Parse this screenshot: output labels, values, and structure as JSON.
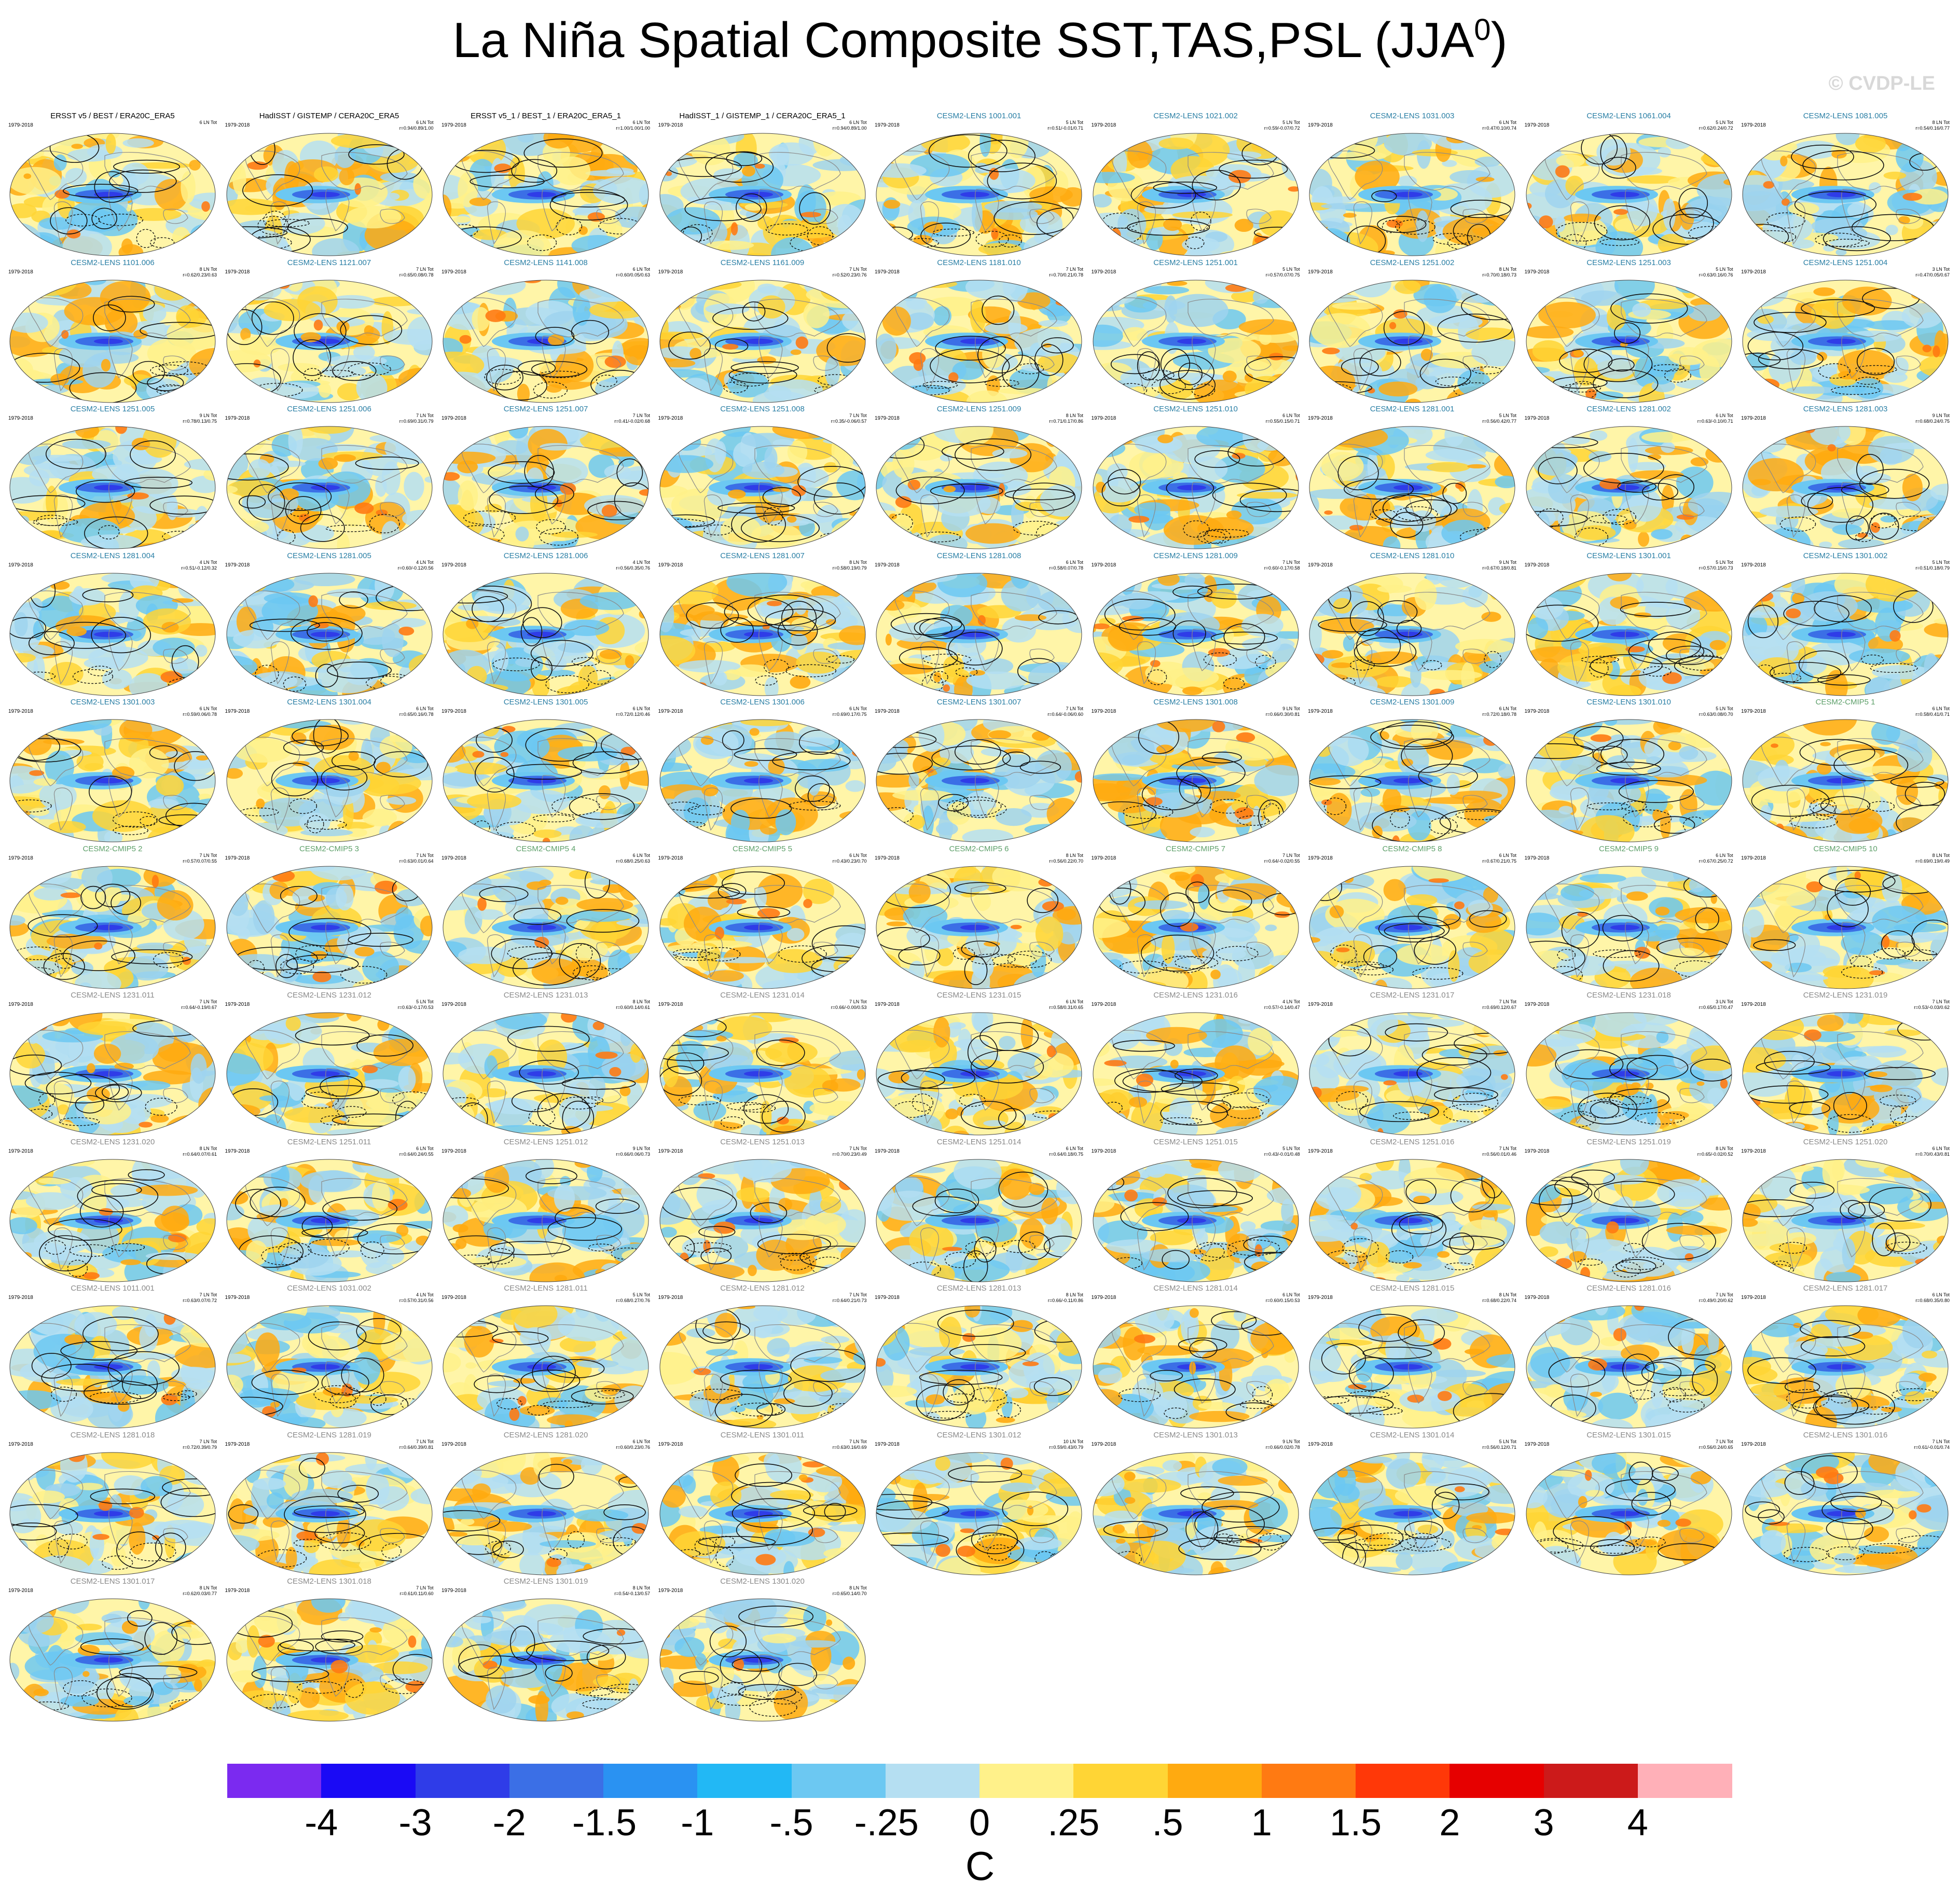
{
  "title": {
    "main": "La Niña Spatial Composite SST,TAS,PSL (JJA",
    "superscript": "0",
    "close": ")"
  },
  "watermark": "© CVDP-LE",
  "colors": {
    "obs_title": "#000000",
    "lens_title": "#2a7fa5",
    "cmip_title": "#5ea06a",
    "lens_gray_title": "#8a8a8a"
  },
  "panels": [
    {
      "title": "ERSST v5 / BEST / ERA20C_ERA5",
      "kind": "obs",
      "years": "1979-2018",
      "stat1": "6 LN Tot",
      "stat2": ""
    },
    {
      "title": "HadISST / GISTEMP / CERA20C_ERA5",
      "kind": "obs",
      "years": "1979-2018",
      "stat1": "6 LN Tot",
      "stat2": "r=0.94/0.89/1.00"
    },
    {
      "title": "ERSST v5_1 / BEST_1 / ERA20C_ERA5_1",
      "kind": "obs",
      "years": "1979-2018",
      "stat1": "6 LN Tot",
      "stat2": "r=1.00/1.00/1.00"
    },
    {
      "title": "HadISST_1 / GISTEMP_1 / CERA20C_ERA5_1",
      "kind": "obs",
      "years": "1979-2018",
      "stat1": "6 LN Tot",
      "stat2": "r=0.94/0.89/1.00"
    },
    {
      "title": "CESM2-LENS 1001.001",
      "kind": "lens",
      "years": "1979-2018",
      "stat1": "5 LN Tot",
      "stat2": "r=0.51/-0.01/0.71"
    },
    {
      "title": "CESM2-LENS 1021.002",
      "kind": "lens",
      "years": "1979-2018",
      "stat1": "5 LN Tot",
      "stat2": "r=0.59/-0.07/0.72"
    },
    {
      "title": "CESM2-LENS 1031.003",
      "kind": "lens",
      "years": "1979-2018",
      "stat1": "6 LN Tot",
      "stat2": "r=0.47/0.10/0.74"
    },
    {
      "title": "CESM2-LENS 1061.004",
      "kind": "lens",
      "years": "1979-2018",
      "stat1": "5 LN Tot",
      "stat2": "r=0.62/0.24/0.72"
    },
    {
      "title": "CESM2-LENS 1081.005",
      "kind": "lens",
      "years": "1979-2018",
      "stat1": "8 LN Tot",
      "stat2": "r=0.54/0.16/0.77"
    },
    {
      "title": "CESM2-LENS 1101.006",
      "kind": "lens",
      "years": "1979-2018",
      "stat1": "8 LN Tot",
      "stat2": "r=0.62/0.23/0.63"
    },
    {
      "title": "CESM2-LENS 1121.007",
      "kind": "lens",
      "years": "1979-2018",
      "stat1": "7 LN Tot",
      "stat2": "r=0.65/0.08/0.78"
    },
    {
      "title": "CESM2-LENS 1141.008",
      "kind": "lens",
      "years": "1979-2018",
      "stat1": "6 LN Tot",
      "stat2": "r=0.60/0.05/0.63"
    },
    {
      "title": "CESM2-LENS 1161.009",
      "kind": "lens",
      "years": "1979-2018",
      "stat1": "7 LN Tot",
      "stat2": "r=0.52/0.23/0.76"
    },
    {
      "title": "CESM2-LENS 1181.010",
      "kind": "lens",
      "years": "1979-2018",
      "stat1": "7 LN Tot",
      "stat2": "r=0.70/0.21/0.78"
    },
    {
      "title": "CESM2-LENS 1251.001",
      "kind": "lens",
      "years": "1979-2018",
      "stat1": "5 LN Tot",
      "stat2": "r=0.57/0.07/0.75"
    },
    {
      "title": "CESM2-LENS 1251.002",
      "kind": "lens",
      "years": "1979-2018",
      "stat1": "8 LN Tot",
      "stat2": "r=0.70/0.18/0.73"
    },
    {
      "title": "CESM2-LENS 1251.003",
      "kind": "lens",
      "years": "1979-2018",
      "stat1": "5 LN Tot",
      "stat2": "r=0.63/0.16/0.76"
    },
    {
      "title": "CESM2-LENS 1251.004",
      "kind": "lens",
      "years": "1979-2018",
      "stat1": "3 LN Tot",
      "stat2": "r=0.47/0.05/0.67"
    },
    {
      "title": "CESM2-LENS 1251.005",
      "kind": "lens",
      "years": "1979-2018",
      "stat1": "9 LN Tot",
      "stat2": "r=0.78/0.13/0.75"
    },
    {
      "title": "CESM2-LENS 1251.006",
      "kind": "lens",
      "years": "1979-2018",
      "stat1": "7 LN Tot",
      "stat2": "r=0.69/0.31/0.79"
    },
    {
      "title": "CESM2-LENS 1251.007",
      "kind": "lens",
      "years": "1979-2018",
      "stat1": "7 LN Tot",
      "stat2": "r=0.41/-0.02/0.68"
    },
    {
      "title": "CESM2-LENS 1251.008",
      "kind": "lens",
      "years": "1979-2018",
      "stat1": "7 LN Tot",
      "stat2": "r=0.35/-0.06/0.57"
    },
    {
      "title": "CESM2-LENS 1251.009",
      "kind": "lens",
      "years": "1979-2018",
      "stat1": "8 LN Tot",
      "stat2": "r=0.71/0.17/0.86"
    },
    {
      "title": "CESM2-LENS 1251.010",
      "kind": "lens",
      "years": "1979-2018",
      "stat1": "6 LN Tot",
      "stat2": "r=0.55/0.15/0.71"
    },
    {
      "title": "CESM2-LENS 1281.001",
      "kind": "lens",
      "years": "1979-2018",
      "stat1": "5 LN Tot",
      "stat2": "r=0.56/0.42/0.77"
    },
    {
      "title": "CESM2-LENS 1281.002",
      "kind": "lens",
      "years": "1979-2018",
      "stat1": "6 LN Tot",
      "stat2": "r=0.63/-0.10/0.71"
    },
    {
      "title": "CESM2-LENS 1281.003",
      "kind": "lens",
      "years": "1979-2018",
      "stat1": "9 LN Tot",
      "stat2": "r=0.68/0.24/0.75"
    },
    {
      "title": "CESM2-LENS 1281.004",
      "kind": "lens",
      "years": "1979-2018",
      "stat1": "4 LN Tot",
      "stat2": "r=0.51/-0.12/0.32"
    },
    {
      "title": "CESM2-LENS 1281.005",
      "kind": "lens",
      "years": "1979-2018",
      "stat1": "4 LN Tot",
      "stat2": "r=0.60/-0.12/0.56"
    },
    {
      "title": "CESM2-LENS 1281.006",
      "kind": "lens",
      "years": "1979-2018",
      "stat1": "4 LN Tot",
      "stat2": "r=0.56/0.35/0.76"
    },
    {
      "title": "CESM2-LENS 1281.007",
      "kind": "lens",
      "years": "1979-2018",
      "stat1": "8 LN Tot",
      "stat2": "r=0.58/0.19/0.79"
    },
    {
      "title": "CESM2-LENS 1281.008",
      "kind": "lens",
      "years": "1979-2018",
      "stat1": "6 LN Tot",
      "stat2": "r=0.58/0.07/0.78"
    },
    {
      "title": "CESM2-LENS 1281.009",
      "kind": "lens",
      "years": "1979-2018",
      "stat1": "7 LN Tot",
      "stat2": "r=0.60/-0.17/0.58"
    },
    {
      "title": "CESM2-LENS 1281.010",
      "kind": "lens",
      "years": "1979-2018",
      "stat1": "9 LN Tot",
      "stat2": "r=0.67/0.18/0.81"
    },
    {
      "title": "CESM2-LENS 1301.001",
      "kind": "lens",
      "years": "1979-2018",
      "stat1": "5 LN Tot",
      "stat2": "r=0.57/0.15/0.73"
    },
    {
      "title": "CESM2-LENS 1301.002",
      "kind": "lens",
      "years": "1979-2018",
      "stat1": "5 LN Tot",
      "stat2": "r=0.51/0.18/0.79"
    },
    {
      "title": "CESM2-LENS 1301.003",
      "kind": "lens",
      "years": "1979-2018",
      "stat1": "6 LN Tot",
      "stat2": "r=0.59/0.06/0.78"
    },
    {
      "title": "CESM2-LENS 1301.004",
      "kind": "lens",
      "years": "1979-2018",
      "stat1": "6 LN Tot",
      "stat2": "r=0.65/0.16/0.78"
    },
    {
      "title": "CESM2-LENS 1301.005",
      "kind": "lens",
      "years": "1979-2018",
      "stat1": "6 LN Tot",
      "stat2": "r=0.72/0.12/0.46"
    },
    {
      "title": "CESM2-LENS 1301.006",
      "kind": "lens",
      "years": "1979-2018",
      "stat1": "6 LN Tot",
      "stat2": "r=0.69/0.17/0.75"
    },
    {
      "title": "CESM2-LENS 1301.007",
      "kind": "lens",
      "years": "1979-2018",
      "stat1": "7 LN Tot",
      "stat2": "r=0.64/-0.06/0.60"
    },
    {
      "title": "CESM2-LENS 1301.008",
      "kind": "lens",
      "years": "1979-2018",
      "stat1": "9 LN Tot",
      "stat2": "r=0.66/0.30/0.81"
    },
    {
      "title": "CESM2-LENS 1301.009",
      "kind": "lens",
      "years": "1979-2018",
      "stat1": "6 LN Tot",
      "stat2": "r=0.72/0.18/0.78"
    },
    {
      "title": "CESM2-LENS 1301.010",
      "kind": "lens",
      "years": "1979-2018",
      "stat1": "5 LN Tot",
      "stat2": "r=0.63/0.08/0.70"
    },
    {
      "title": "CESM2-CMIP5 1",
      "kind": "cmip",
      "years": "1979-2018",
      "stat1": "6 LN Tot",
      "stat2": "r=0.58/0.41/0.71"
    },
    {
      "title": "CESM2-CMIP5 2",
      "kind": "cmip",
      "years": "1979-2018",
      "stat1": "7 LN Tot",
      "stat2": "r=0.57/0.07/0.55"
    },
    {
      "title": "CESM2-CMIP5 3",
      "kind": "cmip",
      "years": "1979-2018",
      "stat1": "7 LN Tot",
      "stat2": "r=0.63/0.01/0.64"
    },
    {
      "title": "CESM2-CMIP5 4",
      "kind": "cmip",
      "years": "1979-2018",
      "stat1": "6 LN Tot",
      "stat2": "r=0.68/0.25/0.63"
    },
    {
      "title": "CESM2-CMIP5 5",
      "kind": "cmip",
      "years": "1979-2018",
      "stat1": "6 LN Tot",
      "stat2": "r=0.43/0.23/0.70"
    },
    {
      "title": "CESM2-CMIP5 6",
      "kind": "cmip",
      "years": "1979-2018",
      "stat1": "8 LN Tot",
      "stat2": "r=0.56/0.22/0.70"
    },
    {
      "title": "CESM2-CMIP5 7",
      "kind": "cmip",
      "years": "1979-2018",
      "stat1": "7 LN Tot",
      "stat2": "r=0.64/-0.02/0.55"
    },
    {
      "title": "CESM2-CMIP5 8",
      "kind": "cmip",
      "years": "1979-2018",
      "stat1": "6 LN Tot",
      "stat2": "r=0.67/0.21/0.75"
    },
    {
      "title": "CESM2-CMIP5 9",
      "kind": "cmip",
      "years": "1979-2018",
      "stat1": "6 LN Tot",
      "stat2": "r=0.67/0.25/0.72"
    },
    {
      "title": "CESM2-CMIP5 10",
      "kind": "cmip",
      "years": "1979-2018",
      "stat1": "8 LN Tot",
      "stat2": "r=0.69/0.19/0.49"
    },
    {
      "title": "CESM2-LENS 1231.011",
      "kind": "gray",
      "years": "1979-2018",
      "stat1": "7 LN Tot",
      "stat2": "r=0.64/-0.19/0.67"
    },
    {
      "title": "CESM2-LENS 1231.012",
      "kind": "gray",
      "years": "1979-2018",
      "stat1": "5 LN Tot",
      "stat2": "r=0.63/-0.17/0.53"
    },
    {
      "title": "CESM2-LENS 1231.013",
      "kind": "gray",
      "years": "1979-2018",
      "stat1": "8 LN Tot",
      "stat2": "r=0.60/0.14/0.61"
    },
    {
      "title": "CESM2-LENS 1231.014",
      "kind": "gray",
      "years": "1979-2018",
      "stat1": "7 LN Tot",
      "stat2": "r=0.66/-0.00/0.53"
    },
    {
      "title": "CESM2-LENS 1231.015",
      "kind": "gray",
      "years": "1979-2018",
      "stat1": "6 LN Tot",
      "stat2": "r=0.58/0.31/0.65"
    },
    {
      "title": "CESM2-LENS 1231.016",
      "kind": "gray",
      "years": "1979-2018",
      "stat1": "4 LN Tot",
      "stat2": "r=0.57/-0.14/0.47"
    },
    {
      "title": "CESM2-LENS 1231.017",
      "kind": "gray",
      "years": "1979-2018",
      "stat1": "7 LN Tot",
      "stat2": "r=0.69/0.12/0.67"
    },
    {
      "title": "CESM2-LENS 1231.018",
      "kind": "gray",
      "years": "1979-2018",
      "stat1": "3 LN Tot",
      "stat2": "r=0.65/0.17/0.47"
    },
    {
      "title": "CESM2-LENS 1231.019",
      "kind": "gray",
      "years": "1979-2018",
      "stat1": "7 LN Tot",
      "stat2": "r=0.53/-0.03/0.62"
    },
    {
      "title": "CESM2-LENS 1231.020",
      "kind": "gray",
      "years": "1979-2018",
      "stat1": "8 LN Tot",
      "stat2": "r=0.64/0.07/0.61"
    },
    {
      "title": "CESM2-LENS 1251.011",
      "kind": "gray",
      "years": "1979-2018",
      "stat1": "6 LN Tot",
      "stat2": "r=0.64/0.24/0.55"
    },
    {
      "title": "CESM2-LENS 1251.012",
      "kind": "gray",
      "years": "1979-2018",
      "stat1": "9 LN Tot",
      "stat2": "r=0.66/0.06/0.73"
    },
    {
      "title": "CESM2-LENS 1251.013",
      "kind": "gray",
      "years": "1979-2018",
      "stat1": "7 LN Tot",
      "stat2": "r=0.70/0.23/0.49"
    },
    {
      "title": "CESM2-LENS 1251.014",
      "kind": "gray",
      "years": "1979-2018",
      "stat1": "6 LN Tot",
      "stat2": "r=0.64/0.18/0.75"
    },
    {
      "title": "CESM2-LENS 1251.015",
      "kind": "gray",
      "years": "1979-2018",
      "stat1": "5 LN Tot",
      "stat2": "r=0.43/-0.01/0.48"
    },
    {
      "title": "CESM2-LENS 1251.016",
      "kind": "gray",
      "years": "1979-2018",
      "stat1": "7 LN Tot",
      "stat2": "r=0.56/0.01/0.46"
    },
    {
      "title": "CESM2-LENS 1251.019",
      "kind": "gray",
      "years": "1979-2018",
      "stat1": "8 LN Tot",
      "stat2": "r=0.65/-0.02/0.52"
    },
    {
      "title": "CESM2-LENS 1251.020",
      "kind": "gray",
      "years": "1979-2018",
      "stat1": "6 LN Tot",
      "stat2": "r=0.70/0.43/0.81"
    },
    {
      "title": "CESM2-LENS 1011.001",
      "kind": "gray",
      "years": "1979-2018",
      "stat1": "7 LN Tot",
      "stat2": "r=0.63/0.07/0.72"
    },
    {
      "title": "CESM2-LENS 1031.002",
      "kind": "gray",
      "years": "1979-2018",
      "stat1": "4 LN Tot",
      "stat2": "r=0.57/0.31/0.56"
    },
    {
      "title": "CESM2-LENS 1281.011",
      "kind": "gray",
      "years": "1979-2018",
      "stat1": "5 LN Tot",
      "stat2": "r=0.68/0.27/0.76"
    },
    {
      "title": "CESM2-LENS 1281.012",
      "kind": "gray",
      "years": "1979-2018",
      "stat1": "7 LN Tot",
      "stat2": "r=0.64/0.21/0.73"
    },
    {
      "title": "CESM2-LENS 1281.013",
      "kind": "gray",
      "years": "1979-2018",
      "stat1": "8 LN Tot",
      "stat2": "r=0.66/-0.11/0.86"
    },
    {
      "title": "CESM2-LENS 1281.014",
      "kind": "gray",
      "years": "1979-2018",
      "stat1": "6 LN Tot",
      "stat2": "r=0.60/0.15/0.53"
    },
    {
      "title": "CESM2-LENS 1281.015",
      "kind": "gray",
      "years": "1979-2018",
      "stat1": "8 LN Tot",
      "stat2": "r=0.68/0.22/0.74"
    },
    {
      "title": "CESM2-LENS 1281.016",
      "kind": "gray",
      "years": "1979-2018",
      "stat1": "7 LN Tot",
      "stat2": "r=0.49/0.20/0.62"
    },
    {
      "title": "CESM2-LENS 1281.017",
      "kind": "gray",
      "years": "1979-2018",
      "stat1": "6 LN Tot",
      "stat2": "r=0.68/0.35/0.80"
    },
    {
      "title": "CESM2-LENS 1281.018",
      "kind": "gray",
      "years": "1979-2018",
      "stat1": "7 LN Tot",
      "stat2": "r=0.72/0.39/0.79"
    },
    {
      "title": "CESM2-LENS 1281.019",
      "kind": "gray",
      "years": "1979-2018",
      "stat1": "7 LN Tot",
      "stat2": "r=0.64/0.39/0.81"
    },
    {
      "title": "CESM2-LENS 1281.020",
      "kind": "gray",
      "years": "1979-2018",
      "stat1": "6 LN Tot",
      "stat2": "r=0.60/0.23/0.76"
    },
    {
      "title": "CESM2-LENS 1301.011",
      "kind": "gray",
      "years": "1979-2018",
      "stat1": "7 LN Tot",
      "stat2": "r=0.63/0.16/0.69"
    },
    {
      "title": "CESM2-LENS 1301.012",
      "kind": "gray",
      "years": "1979-2018",
      "stat1": "10 LN Tot",
      "stat2": "r=0.59/0.43/0.79"
    },
    {
      "title": "CESM2-LENS 1301.013",
      "kind": "gray",
      "years": "1979-2018",
      "stat1": "9 LN Tot",
      "stat2": "r=0.66/0.02/0.78"
    },
    {
      "title": "CESM2-LENS 1301.014",
      "kind": "gray",
      "years": "1979-2018",
      "stat1": "5 LN Tot",
      "stat2": "r=0.56/0.12/0.71"
    },
    {
      "title": "CESM2-LENS 1301.015",
      "kind": "gray",
      "years": "1979-2018",
      "stat1": "7 LN Tot",
      "stat2": "r=0.56/0.24/0.65"
    },
    {
      "title": "CESM2-LENS 1301.016",
      "kind": "gray",
      "years": "1979-2018",
      "stat1": "7 LN Tot",
      "stat2": "r=0.61/-0.01/0.74"
    },
    {
      "title": "CESM2-LENS 1301.017",
      "kind": "gray",
      "years": "1979-2018",
      "stat1": "8 LN Tot",
      "stat2": "r=0.62/0.03/0.77"
    },
    {
      "title": "CESM2-LENS 1301.018",
      "kind": "gray",
      "years": "1979-2018",
      "stat1": "7 LN Tot",
      "stat2": "r=0.61/0.11/0.60"
    },
    {
      "title": "CESM2-LENS 1301.019",
      "kind": "gray",
      "years": "1979-2018",
      "stat1": "8 LN Tot",
      "stat2": "r=0.54/-0.13/0.57"
    },
    {
      "title": "CESM2-LENS 1301.020",
      "kind": "gray",
      "years": "1979-2018",
      "stat1": "8 LN Tot",
      "stat2": "r=0.65/0.14/0.70"
    }
  ],
  "colorbar": {
    "colors": [
      "#7b2af0",
      "#1a0af5",
      "#2f3ce8",
      "#3b6fe6",
      "#2a92f2",
      "#22b8f5",
      "#6cc8f2",
      "#b5dff2",
      "#fff18a",
      "#ffd535",
      "#ffaa10",
      "#ff7a12",
      "#ff3808",
      "#e60000",
      "#cc1a1a",
      "#ffb0b8"
    ],
    "labels": [
      "-4",
      "-3",
      "-2",
      "-1.5",
      "-1",
      "-.5",
      "-.25",
      "0",
      ".25",
      ".5",
      "1",
      "1.5",
      "2",
      "3",
      "4"
    ],
    "units": "C"
  }
}
